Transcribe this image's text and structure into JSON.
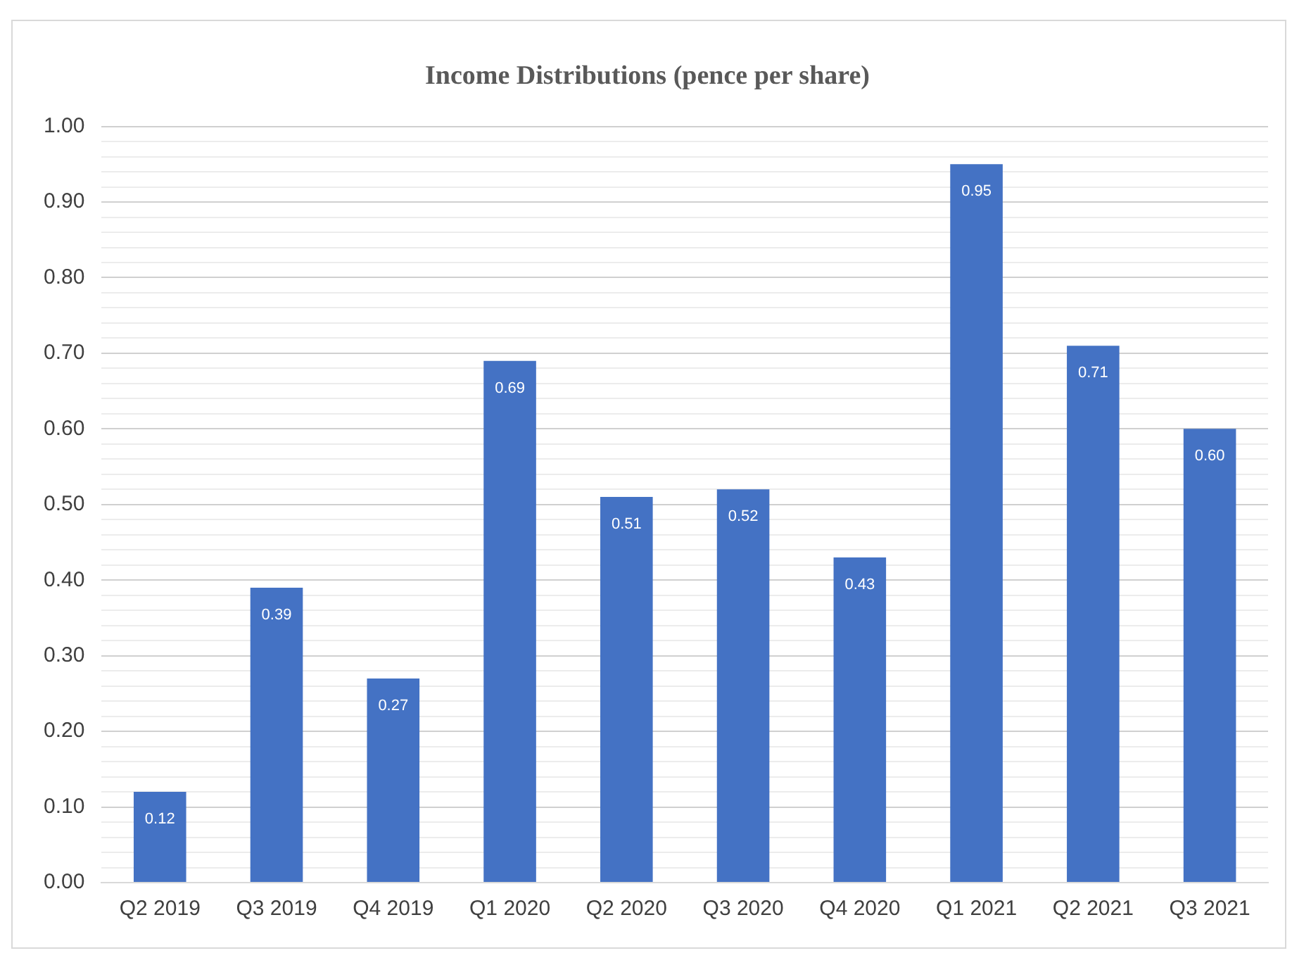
{
  "chart_data": {
    "type": "bar",
    "title": "Income Distributions (pence per share)",
    "categories": [
      "Q2 2019",
      "Q3 2019",
      "Q4 2019",
      "Q1 2020",
      "Q2 2020",
      "Q3 2020",
      "Q4 2020",
      "Q1 2021",
      "Q2 2021",
      "Q3 2021"
    ],
    "values": [
      0.12,
      0.39,
      0.27,
      0.69,
      0.51,
      0.52,
      0.43,
      0.95,
      0.71,
      0.6
    ],
    "value_labels": [
      "0.12",
      "0.39",
      "0.27",
      "0.69",
      "0.51",
      "0.52",
      "0.43",
      "0.95",
      "0.71",
      "0.60"
    ],
    "color": "#4472c4",
    "ylim": [
      0,
      1
    ],
    "yticks": [
      {
        "value": 0,
        "label": "0.00"
      },
      {
        "value": 0.02,
        "label": null
      },
      {
        "value": 0.04,
        "label": null
      },
      {
        "value": 0.06,
        "label": null
      },
      {
        "value": 0.08,
        "label": null
      },
      {
        "value": 0.1,
        "label": "0.10"
      },
      {
        "value": 0.12,
        "label": null
      },
      {
        "value": 0.14,
        "label": null
      },
      {
        "value": 0.16,
        "label": null
      },
      {
        "value": 0.18,
        "label": null
      },
      {
        "value": 0.2,
        "label": "0.20"
      },
      {
        "value": 0.22,
        "label": null
      },
      {
        "value": 0.24,
        "label": null
      },
      {
        "value": 0.26,
        "label": null
      },
      {
        "value": 0.28,
        "label": null
      },
      {
        "value": 0.3,
        "label": "0.30"
      },
      {
        "value": 0.32,
        "label": null
      },
      {
        "value": 0.34,
        "label": null
      },
      {
        "value": 0.36,
        "label": null
      },
      {
        "value": 0.38,
        "label": null
      },
      {
        "value": 0.4,
        "label": "0.40"
      },
      {
        "value": 0.42,
        "label": null
      },
      {
        "value": 0.44,
        "label": null
      },
      {
        "value": 0.46,
        "label": null
      },
      {
        "value": 0.48,
        "label": null
      },
      {
        "value": 0.5,
        "label": "0.50"
      },
      {
        "value": 0.52,
        "label": null
      },
      {
        "value": 0.54,
        "label": null
      },
      {
        "value": 0.56,
        "label": null
      },
      {
        "value": 0.58,
        "label": null
      },
      {
        "value": 0.6,
        "label": "0.60"
      },
      {
        "value": 0.62,
        "label": null
      },
      {
        "value": 0.64,
        "label": null
      },
      {
        "value": 0.66,
        "label": null
      },
      {
        "value": 0.68,
        "label": null
      },
      {
        "value": 0.7,
        "label": "0.70"
      },
      {
        "value": 0.72,
        "label": null
      },
      {
        "value": 0.74,
        "label": null
      },
      {
        "value": 0.76,
        "label": null
      },
      {
        "value": 0.78,
        "label": null
      },
      {
        "value": 0.8,
        "label": "0.80"
      },
      {
        "value": 0.82,
        "label": null
      },
      {
        "value": 0.84,
        "label": null
      },
      {
        "value": 0.86,
        "label": null
      },
      {
        "value": 0.88,
        "label": null
      },
      {
        "value": 0.9,
        "label": "0.90"
      },
      {
        "value": 0.92,
        "label": null
      },
      {
        "value": 0.94,
        "label": null
      },
      {
        "value": 0.96,
        "label": null
      },
      {
        "value": 0.98,
        "label": null
      },
      {
        "value": 1,
        "label": "1.00"
      }
    ],
    "grid": "y",
    "legend": false
  }
}
